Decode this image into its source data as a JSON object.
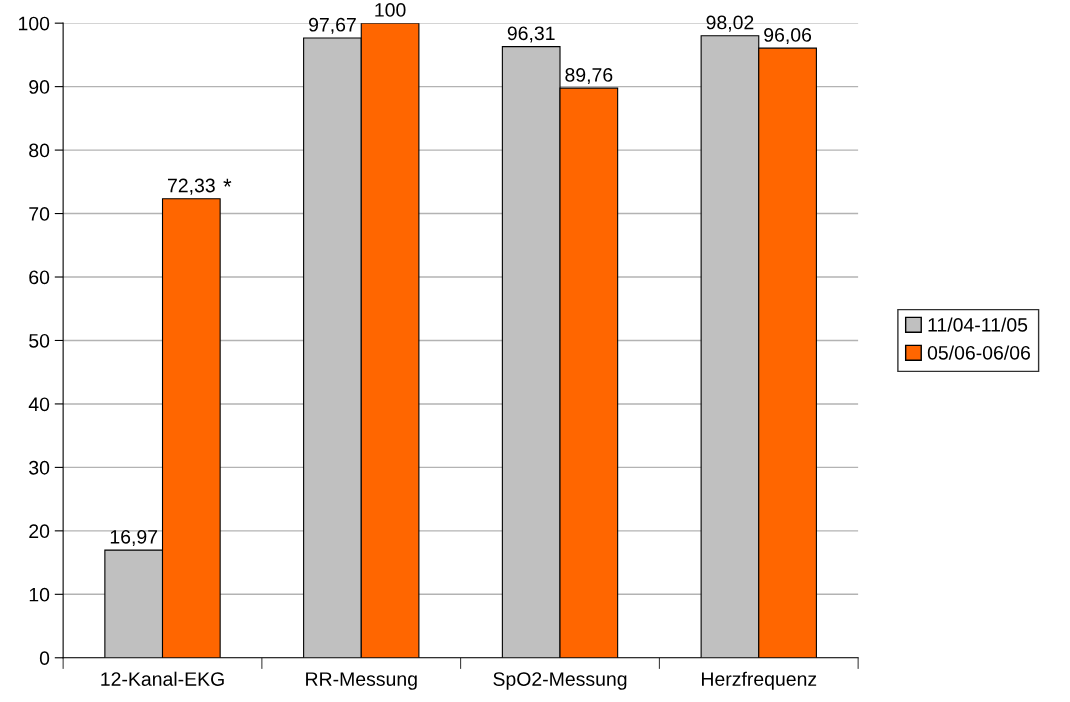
{
  "chart_data": {
    "type": "bar",
    "categories": [
      "12-Kanal-EKG",
      "RR-Messung",
      "SpO2-Messung",
      "Herzfrequenz"
    ],
    "series": [
      {
        "name": "11/04-11/05",
        "color": "#c0c0c0",
        "values": [
          16.97,
          97.67,
          96.31,
          98.02
        ],
        "value_labels": [
          "16,97",
          "97,67",
          "96,31",
          "98,02"
        ]
      },
      {
        "name": "05/06-06/06",
        "color": "#ff6600",
        "values": [
          72.33,
          100,
          89.76,
          96.06
        ],
        "value_labels": [
          "72,33",
          "100",
          "89,76",
          "96,06"
        ]
      }
    ],
    "annotations": [
      {
        "text": "*",
        "x": "12-Kanal-EKG",
        "y": 72.33
      }
    ],
    "ylim": [
      0,
      100
    ],
    "yticks": [
      0,
      10,
      20,
      30,
      40,
      50,
      60,
      70,
      80,
      90,
      100
    ],
    "grid": "y",
    "legend": "right"
  }
}
